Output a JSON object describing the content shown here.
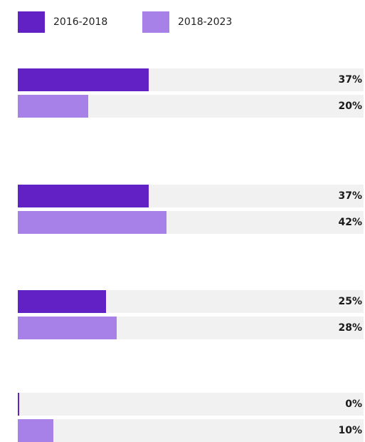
{
  "chart_data": {
    "type": "bar",
    "orientation": "horizontal",
    "categories": [
      "",
      "",
      "",
      ""
    ],
    "series": [
      {
        "name": "2016-2018",
        "color": "#6121c4",
        "values": [
          37,
          37,
          25,
          0
        ],
        "labels": [
          "37%",
          "37%",
          "25%",
          "0%"
        ]
      },
      {
        "name": "2018-2023",
        "color": "#a780e8",
        "values": [
          20,
          42,
          28,
          10
        ],
        "labels": [
          "20%",
          "42%",
          "28%",
          "10%"
        ]
      }
    ],
    "xlim": [
      0,
      100
    ],
    "unit": "%",
    "legend_position": "top-left",
    "track_color": "#f1f1f1"
  }
}
